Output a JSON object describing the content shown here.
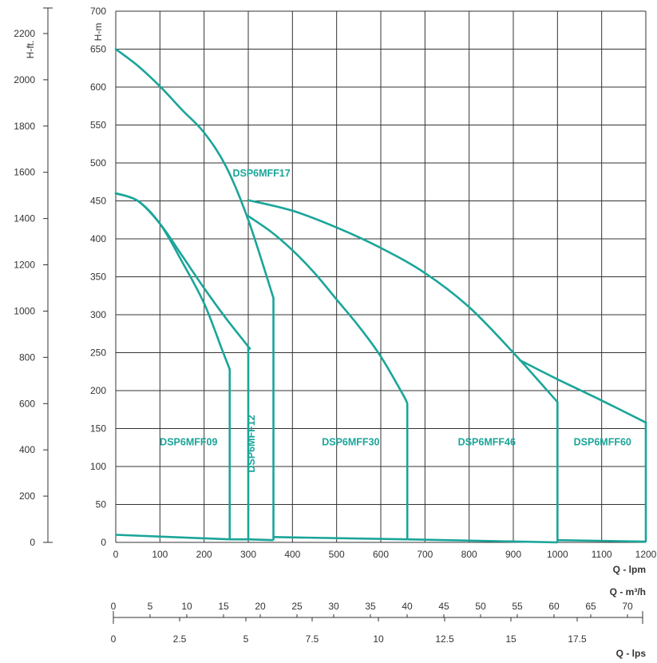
{
  "chart_data": {
    "type": "line",
    "colors": {
      "curve": "#1aa599",
      "grid": "#333333",
      "text": "#333333"
    },
    "grid": true,
    "primary_x": {
      "label": "Q - lpm",
      "range": [
        0,
        1200
      ],
      "ticks": [
        "0",
        "100",
        "200",
        "300",
        "400",
        "500",
        "600",
        "700",
        "800",
        "900",
        "1000",
        "1100",
        "1200"
      ]
    },
    "primary_y": {
      "label": "H-m",
      "range": [
        0,
        700
      ],
      "ticks": [
        "0",
        "50",
        "100",
        "150",
        "200",
        "250",
        "300",
        "350",
        "400",
        "450",
        "500",
        "550",
        "600",
        "650",
        "700"
      ]
    },
    "secondary_y": {
      "label": "H-ft.",
      "ticks": [
        "0",
        "200",
        "400",
        "600",
        "800",
        "1000",
        "1200",
        "1400",
        "1600",
        "1800",
        "2000",
        "2200"
      ]
    },
    "m3h_axis": {
      "label": "Q - m³/h",
      "ticks": [
        "0",
        "5",
        "10",
        "15",
        "20",
        "25",
        "30",
        "35",
        "40",
        "45",
        "50",
        "55",
        "60",
        "65",
        "70"
      ]
    },
    "lps_axis": {
      "label": "Q - lps",
      "ticks": [
        "0",
        "2.5",
        "5",
        "7.5",
        "10",
        "12.5",
        "15",
        "17.5"
      ]
    },
    "series": [
      {
        "name": "DSP6MFF09",
        "points": [
          [
            0,
            460
          ],
          [
            50,
            450
          ],
          [
            100,
            420
          ],
          [
            150,
            370
          ],
          [
            200,
            315
          ],
          [
            240,
            255
          ],
          [
            258,
            228
          ]
        ],
        "cutoff_x": 258,
        "eff": [
          [
            0,
            10
          ],
          [
            258,
            4
          ]
        ]
      },
      {
        "name": "DSP6MFF12",
        "points": [
          [
            0,
            460
          ],
          [
            50,
            450
          ],
          [
            100,
            420
          ],
          [
            150,
            378
          ],
          [
            200,
            335
          ],
          [
            250,
            295
          ],
          [
            300,
            258
          ],
          [
            300,
            258
          ]
        ],
        "cutoff_x": 300,
        "eff": [
          [
            258,
            4
          ],
          [
            300,
            4
          ]
        ]
      },
      {
        "name": "DSP6MFF17",
        "points": [
          [
            0,
            650
          ],
          [
            50,
            628
          ],
          [
            100,
            601
          ],
          [
            150,
            570
          ],
          [
            200,
            540
          ],
          [
            250,
            495
          ],
          [
            300,
            425
          ],
          [
            357,
            322
          ]
        ],
        "cutoff_x": 357,
        "eff": [
          [
            300,
            4
          ],
          [
            357,
            3
          ]
        ]
      },
      {
        "name": "DSP6MFF30",
        "points": [
          [
            300,
            430
          ],
          [
            350,
            410
          ],
          [
            400,
            385
          ],
          [
            450,
            355
          ],
          [
            500,
            320
          ],
          [
            550,
            285
          ],
          [
            600,
            245
          ],
          [
            650,
            195
          ],
          [
            660,
            183
          ]
        ],
        "cutoff_x": 660,
        "eff": [
          [
            357,
            7
          ],
          [
            660,
            4
          ]
        ]
      },
      {
        "name": "DSP6MFF46",
        "points": [
          [
            300,
            451
          ],
          [
            400,
            437
          ],
          [
            500,
            415
          ],
          [
            600,
            388
          ],
          [
            700,
            355
          ],
          [
            800,
            310
          ],
          [
            900,
            250
          ],
          [
            1000,
            185
          ]
        ],
        "cutoff_x": 1000,
        "eff": [
          [
            660,
            4
          ],
          [
            1000,
            0
          ]
        ]
      },
      {
        "name": "DSP6MFF60",
        "points": [
          [
            915,
            240
          ],
          [
            1000,
            215
          ],
          [
            1100,
            187
          ],
          [
            1200,
            158
          ]
        ],
        "cutoff_x": 1200,
        "eff": [
          [
            1000,
            3
          ],
          [
            1200,
            1
          ]
        ]
      }
    ],
    "labels": [
      {
        "text": "DSP6MFF17",
        "x": 330,
        "y": 482,
        "rotate": false
      },
      {
        "text": "DSP6MFF09",
        "x": 165,
        "y": 128,
        "rotate": false
      },
      {
        "text": "DSP6MFF12",
        "x": 282,
        "y": 130,
        "rotate": true
      },
      {
        "text": "DSP6MFF30",
        "x": 532,
        "y": 128,
        "rotate": false
      },
      {
        "text": "DSP6MFF46",
        "x": 840,
        "y": 128,
        "rotate": false
      },
      {
        "text": "DSP6MFF60",
        "x": 1102,
        "y": 128,
        "rotate": false
      }
    ]
  }
}
